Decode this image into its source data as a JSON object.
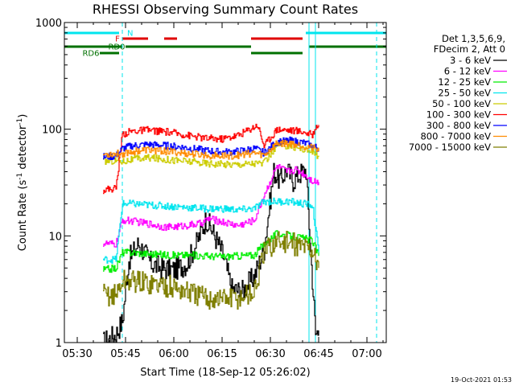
{
  "chart_data": {
    "type": "line",
    "title": "RHESSI Observing Summary Count Rates",
    "xlabel": "Start Time (18-Sep-12 05:26:02)",
    "ylabel_main": "Count Rate (s",
    "ylabel_sup1": "-1",
    "ylabel_mid": " detector",
    "ylabel_sup2": "-1",
    "ylabel_end": ")",
    "yscale": "log",
    "ylim": [
      1,
      1000
    ],
    "xlim": [
      "05:26",
      "07:06"
    ],
    "x_ticks": [
      "05:30",
      "05:45",
      "06:00",
      "06:15",
      "06:30",
      "06:45",
      "07:00"
    ],
    "y_ticks": [
      "1",
      "10",
      "100",
      "1000"
    ],
    "legend_header": [
      "Det 1,3,5,6,9,",
      "FDecim 2, Att 0"
    ],
    "legend_placement": "right",
    "footer": "19-Oct-2021 01:53",
    "flags": {
      "N": {
        "label": "N",
        "color": "#00e5ee",
        "intervals": [
          [
            "05:26",
            "05:43"
          ],
          [
            "06:41",
            "07:06"
          ]
        ]
      },
      "F": {
        "label": "F",
        "color": "#e00000",
        "intervals": [
          [
            "05:44",
            "05:52"
          ],
          [
            "05:57",
            "06:01"
          ],
          [
            "06:24",
            "06:40"
          ]
        ]
      },
      "RD0": {
        "label": "RD0",
        "color": "#007000",
        "intervals": [
          [
            "05:26",
            "05:44"
          ],
          [
            "05:45",
            "06:24"
          ],
          [
            "06:42",
            "07:06"
          ]
        ]
      },
      "RD6": {
        "label": "RD6",
        "color": "#007000",
        "intervals": [
          [
            "05:37",
            "05:43"
          ],
          [
            "06:24",
            "06:40"
          ]
        ]
      }
    },
    "vlines": {
      "solid": [
        "05:26",
        "06:42",
        "06:44"
      ],
      "dashed": [
        "05:44",
        "07:03"
      ]
    },
    "series": [
      {
        "name": "3 - 6 keV",
        "color": "#000000",
        "x": [
          "05:38",
          "05:42",
          "05:44",
          "05:46",
          "05:49",
          "05:53",
          "05:56",
          "06:00",
          "06:04",
          "06:07",
          "06:10",
          "06:12",
          "06:15",
          "06:18",
          "06:21",
          "06:25",
          "06:28",
          "06:31",
          "06:33",
          "06:35",
          "06:37",
          "06:39",
          "06:41",
          "06:44",
          "06:45"
        ],
        "y": [
          1.0,
          1.2,
          1.6,
          6.0,
          8.5,
          5.5,
          5.0,
          4.8,
          5.5,
          8.5,
          14.5,
          11.0,
          7.0,
          3.2,
          3.0,
          4.2,
          7.5,
          40,
          33,
          42,
          33,
          38,
          42,
          1.2,
          1.3
        ]
      },
      {
        "name": "6 - 12 keV",
        "color": "#ff00ff",
        "x": [
          "05:38",
          "05:42",
          "05:44",
          "05:47",
          "05:52",
          "05:58",
          "06:04",
          "06:08",
          "06:11",
          "06:15",
          "06:20",
          "06:25",
          "06:28",
          "06:32",
          "06:35",
          "06:38",
          "06:41",
          "06:43",
          "06:45"
        ],
        "y": [
          8.5,
          8.3,
          14.0,
          13.8,
          13.0,
          12.0,
          12.5,
          13.0,
          14.5,
          13.5,
          12.5,
          14.0,
          24,
          45,
          40,
          42,
          37,
          33,
          32
        ]
      },
      {
        "name": "12 - 25 keV",
        "color": "#00ee00",
        "x": [
          "05:38",
          "05:42",
          "05:44",
          "05:47",
          "05:52",
          "05:58",
          "06:04",
          "06:10",
          "06:15",
          "06:20",
          "06:25",
          "06:28",
          "06:32",
          "06:36",
          "06:40",
          "06:43",
          "06:45"
        ],
        "y": [
          4.8,
          5.0,
          7.0,
          7.0,
          6.8,
          6.6,
          6.6,
          6.5,
          6.4,
          6.5,
          6.6,
          8.5,
          10.5,
          10.0,
          9.5,
          9.0,
          6.5
        ]
      },
      {
        "name": "25 - 50 keV",
        "color": "#00e5ee",
        "x": [
          "05:38",
          "05:42",
          "05:44",
          "05:47",
          "05:52",
          "05:58",
          "06:04",
          "06:10",
          "06:15",
          "06:20",
          "06:25",
          "06:28",
          "06:32",
          "06:36",
          "06:40",
          "06:43",
          "06:45"
        ],
        "y": [
          6.0,
          6.0,
          20,
          20,
          19.5,
          19,
          18.5,
          18,
          18,
          17.5,
          18,
          21,
          21,
          21,
          20,
          19.5,
          7.0
        ]
      },
      {
        "name": "50 - 100 keV",
        "color": "#cccc00",
        "x": [
          "05:38",
          "05:42",
          "05:44",
          "05:47",
          "05:52",
          "05:58",
          "06:04",
          "06:10",
          "06:15",
          "06:20",
          "06:25",
          "06:28",
          "06:32",
          "06:36",
          "06:40",
          "06:43",
          "06:45"
        ],
        "y": [
          50,
          51,
          50,
          52,
          54,
          52,
          50,
          48,
          47,
          47,
          48,
          48,
          70,
          70,
          65,
          62,
          55
        ]
      },
      {
        "name": "100 - 300 keV",
        "color": "#ff0000",
        "x": [
          "05:38",
          "05:42",
          "05:44",
          "05:47",
          "05:52",
          "05:58",
          "06:04",
          "06:10",
          "06:15",
          "06:20",
          "06:24",
          "06:26",
          "06:28",
          "06:32",
          "06:36",
          "06:40",
          "06:43",
          "06:44",
          "06:45"
        ],
        "y": [
          27,
          28,
          90,
          96,
          98,
          94,
          88,
          82,
          81,
          88,
          102,
          110,
          70,
          100,
          98,
          95,
          88,
          105,
          110
        ]
      },
      {
        "name": "300 - 800 keV",
        "color": "#0000ff",
        "x": [
          "05:38",
          "05:42",
          "05:44",
          "05:47",
          "05:52",
          "05:58",
          "06:04",
          "06:10",
          "06:15",
          "06:20",
          "06:25",
          "06:28",
          "06:32",
          "06:36",
          "06:40",
          "06:43",
          "06:45"
        ],
        "y": [
          55,
          56,
          66,
          70,
          72,
          70,
          67,
          63,
          61,
          62,
          66,
          60,
          76,
          78,
          75,
          70,
          66
        ]
      },
      {
        "name": "800 - 7000 keV",
        "color": "#ff8c00",
        "x": [
          "05:38",
          "05:42",
          "05:44",
          "05:47",
          "05:52",
          "05:58",
          "06:04",
          "06:10",
          "06:15",
          "06:20",
          "06:25",
          "06:28",
          "06:32",
          "06:36",
          "06:40",
          "06:43",
          "06:45"
        ],
        "y": [
          58,
          59,
          59,
          62,
          64,
          62,
          59,
          57,
          56,
          57,
          60,
          57,
          74,
          74,
          70,
          67,
          62
        ]
      },
      {
        "name": "7000 - 15000 keV",
        "color": "#7f7f00",
        "x": [
          "05:38",
          "05:42",
          "05:44",
          "05:47",
          "05:52",
          "05:58",
          "06:04",
          "06:10",
          "06:15",
          "06:20",
          "06:25",
          "06:28",
          "06:32",
          "06:36",
          "06:40",
          "06:43",
          "06:45"
        ],
        "y": [
          2.8,
          2.8,
          3.8,
          3.8,
          3.6,
          3.4,
          3.0,
          2.6,
          2.6,
          2.6,
          3.0,
          7.0,
          9.0,
          8.5,
          8.0,
          7.5,
          5.0
        ]
      }
    ]
  }
}
